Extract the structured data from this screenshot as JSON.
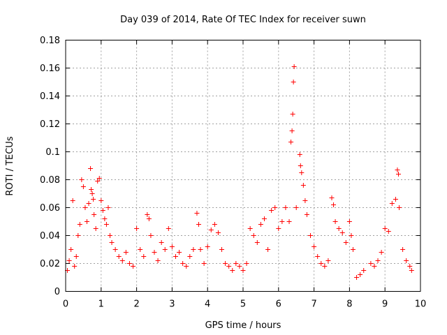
{
  "chart_data": {
    "type": "scatter",
    "title": "Day 039 of 2014, Rate Of TEC Index for receiver suwn",
    "xlabel": "GPS time / hours",
    "ylabel": "ROTI / TECUs",
    "xlim": [
      0,
      10
    ],
    "ylim": [
      0,
      0.18
    ],
    "xticks": [
      0,
      1,
      2,
      3,
      4,
      5,
      6,
      7,
      8,
      9,
      10
    ],
    "yticks": [
      0,
      0.02,
      0.04,
      0.06,
      0.08,
      0.1,
      0.12,
      0.14,
      0.16,
      0.18
    ],
    "xtick_labels": [
      "0",
      "1",
      "2",
      "3",
      "4",
      "5",
      "6",
      "7",
      "8",
      "9",
      "10"
    ],
    "ytick_labels": [
      "0",
      "0.02",
      "0.04",
      "0.06",
      "0.08",
      "0.1",
      "0.12",
      "0.14",
      "0.16",
      "0.18"
    ],
    "grid": true,
    "marker": "+",
    "color": "#ff0000",
    "series": [
      {
        "name": "ROTI",
        "points": [
          [
            0.05,
            0.015
          ],
          [
            0.1,
            0.022
          ],
          [
            0.15,
            0.03
          ],
          [
            0.2,
            0.065
          ],
          [
            0.25,
            0.018
          ],
          [
            0.3,
            0.025
          ],
          [
            0.35,
            0.04
          ],
          [
            0.4,
            0.048
          ],
          [
            0.45,
            0.08
          ],
          [
            0.5,
            0.075
          ],
          [
            0.55,
            0.06
          ],
          [
            0.6,
            0.05
          ],
          [
            0.65,
            0.063
          ],
          [
            0.7,
            0.088
          ],
          [
            0.72,
            0.073
          ],
          [
            0.75,
            0.07
          ],
          [
            0.78,
            0.066
          ],
          [
            0.8,
            0.055
          ],
          [
            0.85,
            0.045
          ],
          [
            0.9,
            0.079
          ],
          [
            0.95,
            0.081
          ],
          [
            1.0,
            0.065
          ],
          [
            1.05,
            0.058
          ],
          [
            1.1,
            0.052
          ],
          [
            1.15,
            0.048
          ],
          [
            1.2,
            0.06
          ],
          [
            1.25,
            0.04
          ],
          [
            1.3,
            0.035
          ],
          [
            1.4,
            0.03
          ],
          [
            1.5,
            0.025
          ],
          [
            1.6,
            0.022
          ],
          [
            1.7,
            0.028
          ],
          [
            1.8,
            0.02
          ],
          [
            1.9,
            0.018
          ],
          [
            2.0,
            0.045
          ],
          [
            2.1,
            0.03
          ],
          [
            2.2,
            0.025
          ],
          [
            2.3,
            0.055
          ],
          [
            2.35,
            0.052
          ],
          [
            2.4,
            0.04
          ],
          [
            2.5,
            0.028
          ],
          [
            2.6,
            0.022
          ],
          [
            2.7,
            0.035
          ],
          [
            2.8,
            0.03
          ],
          [
            2.9,
            0.045
          ],
          [
            3.0,
            0.032
          ],
          [
            3.1,
            0.025
          ],
          [
            3.2,
            0.028
          ],
          [
            3.3,
            0.02
          ],
          [
            3.4,
            0.018
          ],
          [
            3.5,
            0.025
          ],
          [
            3.6,
            0.03
          ],
          [
            3.7,
            0.056
          ],
          [
            3.75,
            0.048
          ],
          [
            3.8,
            0.03
          ],
          [
            3.9,
            0.02
          ],
          [
            4.0,
            0.032
          ],
          [
            4.1,
            0.044
          ],
          [
            4.2,
            0.048
          ],
          [
            4.3,
            0.042
          ],
          [
            4.4,
            0.03
          ],
          [
            4.5,
            0.02
          ],
          [
            4.6,
            0.018
          ],
          [
            4.7,
            0.015
          ],
          [
            4.8,
            0.02
          ],
          [
            4.9,
            0.018
          ],
          [
            5.0,
            0.015
          ],
          [
            5.1,
            0.02
          ],
          [
            5.2,
            0.045
          ],
          [
            5.3,
            0.04
          ],
          [
            5.4,
            0.035
          ],
          [
            5.5,
            0.048
          ],
          [
            5.6,
            0.052
          ],
          [
            5.7,
            0.03
          ],
          [
            5.8,
            0.058
          ],
          [
            5.9,
            0.06
          ],
          [
            6.0,
            0.045
          ],
          [
            6.1,
            0.05
          ],
          [
            6.2,
            0.06
          ],
          [
            6.3,
            0.05
          ],
          [
            6.35,
            0.107
          ],
          [
            6.38,
            0.115
          ],
          [
            6.4,
            0.127
          ],
          [
            6.42,
            0.15
          ],
          [
            6.44,
            0.161
          ],
          [
            6.5,
            0.06
          ],
          [
            6.6,
            0.098
          ],
          [
            6.62,
            0.09
          ],
          [
            6.65,
            0.085
          ],
          [
            6.7,
            0.076
          ],
          [
            6.75,
            0.065
          ],
          [
            6.8,
            0.055
          ],
          [
            6.9,
            0.04
          ],
          [
            7.0,
            0.032
          ],
          [
            7.1,
            0.025
          ],
          [
            7.2,
            0.02
          ],
          [
            7.3,
            0.018
          ],
          [
            7.4,
            0.022
          ],
          [
            7.5,
            0.067
          ],
          [
            7.55,
            0.062
          ],
          [
            7.6,
            0.05
          ],
          [
            7.7,
            0.045
          ],
          [
            7.8,
            0.042
          ],
          [
            7.9,
            0.035
          ],
          [
            8.0,
            0.05
          ],
          [
            8.05,
            0.04
          ],
          [
            8.1,
            0.03
          ],
          [
            8.2,
            0.01
          ],
          [
            8.3,
            0.012
          ],
          [
            8.4,
            0.015
          ],
          [
            8.6,
            0.02
          ],
          [
            8.7,
            0.018
          ],
          [
            8.8,
            0.022
          ],
          [
            8.9,
            0.028
          ],
          [
            9.0,
            0.045
          ],
          [
            9.1,
            0.043
          ],
          [
            9.2,
            0.063
          ],
          [
            9.3,
            0.066
          ],
          [
            9.35,
            0.087
          ],
          [
            9.38,
            0.084
          ],
          [
            9.4,
            0.06
          ],
          [
            9.5,
            0.03
          ],
          [
            9.6,
            0.022
          ],
          [
            9.7,
            0.018
          ],
          [
            9.75,
            0.015
          ]
        ]
      }
    ]
  }
}
